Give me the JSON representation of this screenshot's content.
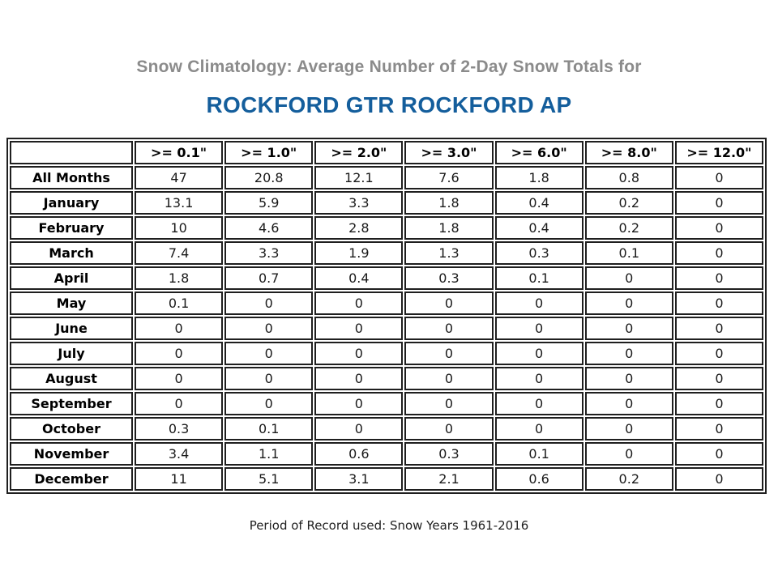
{
  "header": {
    "title": "Snow Climatology: Average Number of 2-Day Snow Totals for",
    "station": "ROCKFORD GTR ROCKFORD AP"
  },
  "colors": {
    "title_gray": "#8b8b8b",
    "station_blue": "#145e9c",
    "table_border": "#1f1f1f"
  },
  "table": {
    "columns": [
      "",
      ">= 0.1\"",
      ">= 1.0\"",
      ">= 2.0\"",
      ">= 3.0\"",
      ">= 6.0\"",
      ">= 8.0\"",
      ">= 12.0\""
    ],
    "rows": [
      {
        "label": "All Months",
        "values": [
          "47",
          "20.8",
          "12.1",
          "7.6",
          "1.8",
          "0.8",
          "0"
        ]
      },
      {
        "label": "January",
        "values": [
          "13.1",
          "5.9",
          "3.3",
          "1.8",
          "0.4",
          "0.2",
          "0"
        ]
      },
      {
        "label": "February",
        "values": [
          "10",
          "4.6",
          "2.8",
          "1.8",
          "0.4",
          "0.2",
          "0"
        ]
      },
      {
        "label": "March",
        "values": [
          "7.4",
          "3.3",
          "1.9",
          "1.3",
          "0.3",
          "0.1",
          "0"
        ]
      },
      {
        "label": "April",
        "values": [
          "1.8",
          "0.7",
          "0.4",
          "0.3",
          "0.1",
          "0",
          "0"
        ]
      },
      {
        "label": "May",
        "values": [
          "0.1",
          "0",
          "0",
          "0",
          "0",
          "0",
          "0"
        ]
      },
      {
        "label": "June",
        "values": [
          "0",
          "0",
          "0",
          "0",
          "0",
          "0",
          "0"
        ]
      },
      {
        "label": "July",
        "values": [
          "0",
          "0",
          "0",
          "0",
          "0",
          "0",
          "0"
        ]
      },
      {
        "label": "August",
        "values": [
          "0",
          "0",
          "0",
          "0",
          "0",
          "0",
          "0"
        ]
      },
      {
        "label": "September",
        "values": [
          "0",
          "0",
          "0",
          "0",
          "0",
          "0",
          "0"
        ]
      },
      {
        "label": "October",
        "values": [
          "0.3",
          "0.1",
          "0",
          "0",
          "0",
          "0",
          "0"
        ]
      },
      {
        "label": "November",
        "values": [
          "3.4",
          "1.1",
          "0.6",
          "0.3",
          "0.1",
          "0",
          "0"
        ]
      },
      {
        "label": "December",
        "values": [
          "11",
          "5.1",
          "3.1",
          "2.1",
          "0.6",
          "0.2",
          "0"
        ]
      }
    ]
  },
  "footer": {
    "note": "Period of Record used: Snow Years 1961-2016"
  }
}
